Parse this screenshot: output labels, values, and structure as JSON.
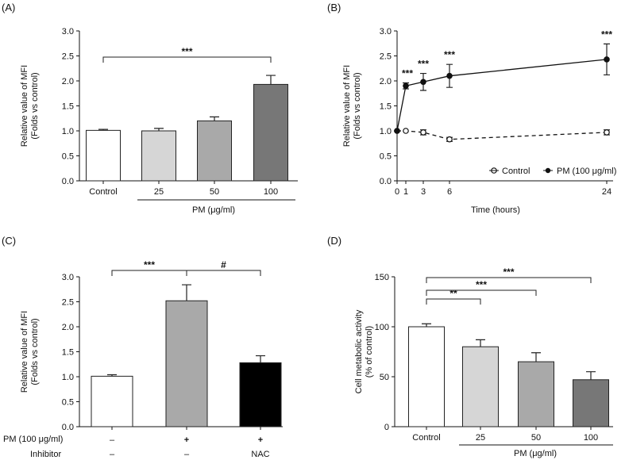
{
  "chart_data": [
    {
      "panel": "(A)",
      "type": "bar",
      "ylabel": [
        "Relative value of MFI",
        "(Folds vs control)"
      ],
      "ylim": [
        0,
        3.0
      ],
      "yticks": [
        "0.0",
        "0.5",
        "1.0",
        "1.5",
        "2.0",
        "2.5",
        "3.0"
      ],
      "categories": [
        "Control",
        "25",
        "50",
        "100"
      ],
      "values": [
        1.01,
        1.0,
        1.2,
        1.93
      ],
      "errors": [
        0.02,
        0.05,
        0.08,
        0.18
      ],
      "colors": [
        "#ffffff",
        "#d6d6d6",
        "#a9a9a9",
        "#777777"
      ],
      "group_label": "PM (μg/ml)",
      "significance": [
        {
          "from": 0,
          "to": 3,
          "label": "***"
        }
      ]
    },
    {
      "panel": "(B)",
      "type": "line",
      "ylabel": [
        "Relative value of MFI",
        "(Folds vs control)"
      ],
      "xlabel": "Time (hours)",
      "ylim": [
        0,
        3.0
      ],
      "xlim": [
        0,
        24
      ],
      "yticks": [
        "0.0",
        "0.5",
        "1.0",
        "1.5",
        "2.0",
        "2.5",
        "3.0"
      ],
      "xticks": [
        "0",
        "1",
        "3",
        "6",
        "24"
      ],
      "series": [
        {
          "name": "Control",
          "x": [
            0,
            1,
            3,
            6,
            24
          ],
          "y": [
            1.0,
            1.0,
            0.97,
            0.83,
            0.97
          ],
          "errors": [
            0.0,
            0.0,
            0.05,
            0.04,
            0.05
          ]
        },
        {
          "name": "PM (100 μg/ml)",
          "x": [
            0,
            1,
            3,
            6,
            24
          ],
          "y": [
            1.0,
            1.9,
            1.98,
            2.1,
            2.43
          ],
          "errors": [
            0.0,
            0.06,
            0.17,
            0.23,
            0.31
          ]
        }
      ],
      "annotations": [
        "***",
        "***",
        "***",
        "***"
      ]
    },
    {
      "panel": "(C)",
      "type": "bar",
      "ylabel": [
        "Relative value of MFI",
        "(Folds vs control)"
      ],
      "ylim": [
        0,
        3.0
      ],
      "yticks": [
        "0.0",
        "0.5",
        "1.0",
        "1.5",
        "2.0",
        "2.5",
        "3.0"
      ],
      "values": [
        1.01,
        2.52,
        1.28
      ],
      "errors": [
        0.03,
        0.32,
        0.14
      ],
      "colors": [
        "#ffffff",
        "#a9a9a9",
        "#000000"
      ],
      "row_labels": [
        "PM (100 μg/ml)",
        "Inhibitor"
      ],
      "pm_row": [
        "–",
        "+",
        "+"
      ],
      "inhibitor_row": [
        "–",
        "–",
        "NAC"
      ],
      "significance": [
        {
          "from": 0,
          "to": 1,
          "label": "***"
        },
        {
          "from": 1,
          "to": 2,
          "label": "#"
        }
      ]
    },
    {
      "panel": "(D)",
      "type": "bar",
      "ylabel": [
        "Cell metabolic activity",
        "(% of control)"
      ],
      "ylim": [
        0,
        150
      ],
      "yticks": [
        "0",
        "50",
        "100",
        "150"
      ],
      "categories": [
        "Control",
        "25",
        "50",
        "100"
      ],
      "values": [
        100,
        80,
        65,
        47
      ],
      "errors": [
        3,
        7,
        9,
        8
      ],
      "colors": [
        "#ffffff",
        "#d6d6d6",
        "#a9a9a9",
        "#777777"
      ],
      "group_label": "PM (μg/ml)",
      "significance": [
        {
          "from": 0,
          "to": 1,
          "label": "**"
        },
        {
          "from": 0,
          "to": 2,
          "label": "***"
        },
        {
          "from": 0,
          "to": 3,
          "label": "***"
        }
      ]
    }
  ]
}
